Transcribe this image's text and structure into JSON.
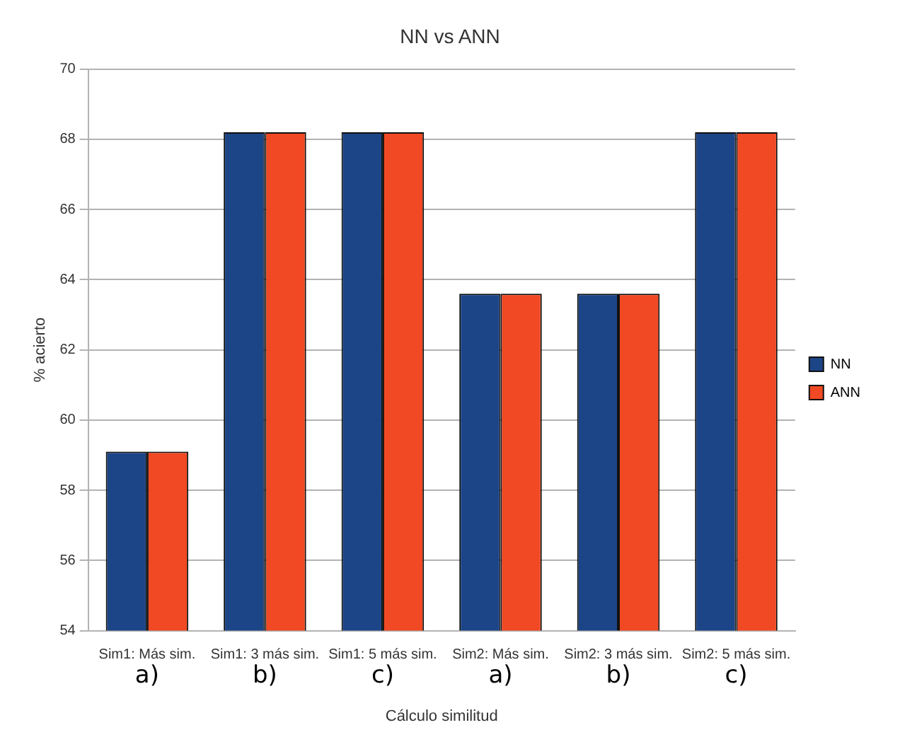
{
  "chart_data": {
    "type": "bar",
    "title": "NN vs ANN",
    "xlabel": "Cálculo similitud",
    "ylabel": "% acierto",
    "categories": [
      "Sim1: Más sim.",
      "Sim1: 3 más sim.",
      "Sim1: 5 más sim.",
      "Sim2: Más sim.",
      "Sim2: 3 más sim.",
      "Sim2: 5 más sim."
    ],
    "series": [
      {
        "name": "NN",
        "color": "#1c4587",
        "values": [
          59.1,
          68.2,
          68.2,
          63.6,
          63.6,
          68.2
        ]
      },
      {
        "name": "ANN",
        "color": "#f04923",
        "values": [
          59.1,
          68.2,
          68.2,
          63.6,
          63.6,
          68.2
        ]
      }
    ],
    "ylim": [
      54,
      70
    ],
    "yticks": [
      54,
      56,
      58,
      60,
      62,
      64,
      66,
      68,
      70
    ],
    "grid": "y",
    "legend": "right",
    "annotations": [
      {
        "text": "a)",
        "x": "Sim1: Más sim."
      },
      {
        "text": "b)",
        "x": "Sim1: 3 más sim."
      },
      {
        "text": "c)",
        "x": "Sim1: 5 más sim."
      },
      {
        "text": "a)",
        "x": "Sim2: Más sim."
      },
      {
        "text": "b)",
        "x": "Sim2: 3 más sim."
      },
      {
        "text": "c)",
        "x": "Sim2: 5 más sim."
      }
    ]
  }
}
